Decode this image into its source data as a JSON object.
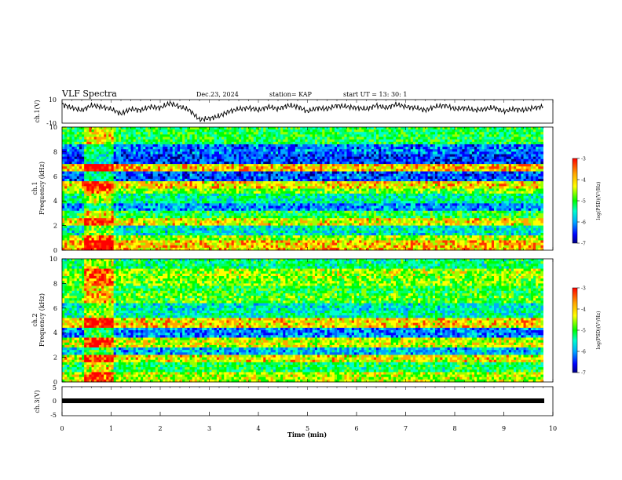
{
  "header": {
    "title": "VLF Spectra",
    "date": "Dec.23, 2024",
    "station": "station= KAP",
    "start": "start UT =  13: 30: 1"
  },
  "colorbar": {
    "label": "log(PSD)(V²/Hz)",
    "ticks": [
      "-3",
      "-4",
      "-5",
      "-6",
      "-7"
    ],
    "colors": [
      "#ff0000",
      "#ffa500",
      "#ffff00",
      "#00ff00",
      "#00ffcc",
      "#00aaff",
      "#0000ff",
      "#000080"
    ]
  },
  "chart_data": [
    {
      "type": "line",
      "name": "ch1",
      "ylabel": "ch.1(V)",
      "ylim": [
        -10,
        10
      ],
      "yticks": [
        "10",
        "-10"
      ],
      "x": [
        0.0,
        0.2,
        0.4,
        0.6,
        0.8,
        1.0,
        1.2,
        1.4,
        1.6,
        1.8,
        2.0,
        2.2,
        2.4,
        2.6,
        2.8,
        3.0,
        3.2,
        3.4,
        3.6,
        3.8,
        4.0,
        4.2,
        4.4,
        4.6,
        4.8,
        5.0,
        5.2,
        5.4,
        5.6,
        5.8,
        6.0,
        6.2,
        6.4,
        6.6,
        6.8,
        7.0,
        7.2,
        7.4,
        7.6,
        7.8,
        8.0,
        8.2,
        8.4,
        8.6,
        8.8,
        9.0,
        9.2,
        9.4,
        9.6,
        9.8
      ],
      "values": [
        6,
        3,
        1,
        5,
        4,
        2,
        -2,
        2,
        1,
        4,
        3,
        7,
        4,
        1,
        -7,
        -6,
        -4,
        0,
        2,
        3,
        1,
        4,
        2,
        5,
        4,
        0,
        3,
        2,
        5,
        4,
        3,
        2,
        5,
        3,
        6,
        4,
        3,
        1,
        4,
        5,
        2,
        3,
        1,
        2,
        3,
        0,
        2,
        1,
        3,
        4
      ]
    },
    {
      "type": "heatmap",
      "name": "ch1-spectrogram",
      "ylabel": "ch.1\nFrequency (kHz)",
      "ylim": [
        0,
        10
      ],
      "yticks": [
        "0",
        "2",
        "4",
        "6",
        "8",
        "10"
      ],
      "bands_khz": [
        0.5,
        1.0,
        1.6,
        2.3,
        3.0,
        3.5,
        4.3,
        4.8,
        5.3,
        6.0,
        6.6,
        7.3,
        8.2,
        9.0
      ],
      "band_levels": [
        -4.0,
        -4.5,
        -5.5,
        -4.2,
        -5.0,
        -6.0,
        -5.3,
        -4.6,
        -4.1,
        -6.2,
        -4.0,
        -6.3,
        -6.1,
        -5.0
      ]
    },
    {
      "type": "heatmap",
      "name": "ch2-spectrogram",
      "ylabel": "ch.2\nFrequency (kHz)",
      "ylim": [
        0,
        10
      ],
      "yticks": [
        "0",
        "2",
        "4",
        "6",
        "8",
        "10"
      ],
      "bands_khz": [
        0.5,
        1.1,
        1.9,
        2.6,
        3.2,
        3.9,
        4.8,
        5.4,
        6.1,
        6.8,
        7.4,
        8.0,
        8.8,
        9.5
      ],
      "band_levels": [
        -4.4,
        -5.1,
        -4.2,
        -5.8,
        -4.3,
        -6.0,
        -4.1,
        -5.4,
        -5.5,
        -4.8,
        -5.0,
        -4.6,
        -4.5,
        -5.2
      ]
    },
    {
      "type": "line",
      "name": "ch3",
      "ylabel": "ch.3(V)",
      "ylim": [
        -5,
        5
      ],
      "yticks": [
        "5",
        "0",
        "-5"
      ],
      "x": [
        0,
        9.8
      ],
      "values": [
        0,
        0
      ]
    }
  ],
  "xaxis": {
    "label": "Time (min)",
    "min": 0,
    "max": 10,
    "ticks": [
      "0",
      "1",
      "2",
      "3",
      "4",
      "5",
      "6",
      "7",
      "8",
      "9",
      "10"
    ]
  }
}
